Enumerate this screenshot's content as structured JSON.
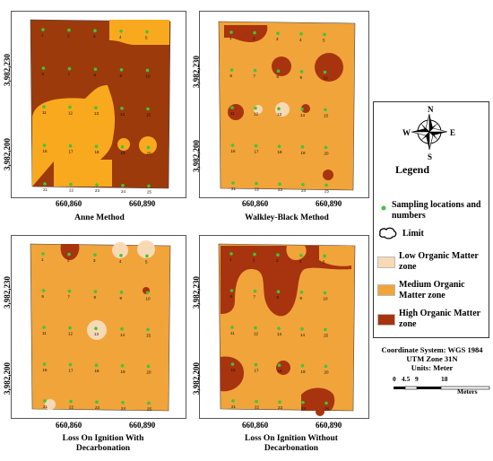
{
  "colors": {
    "low": "#f8d9b6",
    "medium": "#f0a43a",
    "high": "#a8330f",
    "anne_high": "#9c3a0c",
    "anne_orange": "#f9a91d",
    "point": "#3fc53a"
  },
  "axes": {
    "x_left": "660,860",
    "x_right": "660,890",
    "y_top": "3,982,230",
    "y_bottom": "3,982,200"
  },
  "panels": [
    {
      "title": "Anne Method"
    },
    {
      "title": "Walkley-Black  Method"
    },
    {
      "title": "Loss On Ignition With Decarbonation"
    },
    {
      "title": "Loss On Ignition Without Decarbonation"
    }
  ],
  "sample_ids": [
    "1",
    "2",
    "3",
    "4",
    "5",
    "6",
    "7",
    "8",
    "9",
    "10",
    "11",
    "12",
    "13",
    "14",
    "15",
    "16",
    "17",
    "18",
    "19",
    "20",
    "21",
    "22",
    "23",
    "24",
    "25"
  ],
  "legend": {
    "title": "Legend",
    "compass": {
      "n": "N",
      "s": "S",
      "e": "E",
      "w": "W"
    },
    "sampling_label": "Sampling locations and numbers",
    "limit_label": "Limit",
    "low_label": "Low Organic Matter zone",
    "medium_label": "Medium Organic Matter zone",
    "high_label": "High Organic Matter zone"
  },
  "info": {
    "coord_system": "Coordinate System: WGS 1984",
    "utm": "UTM Zone 31N",
    "units": "Units: Meter",
    "scale_ticks": [
      "0",
      "4.5",
      "9",
      "18"
    ],
    "scale_unit": "Meters"
  }
}
